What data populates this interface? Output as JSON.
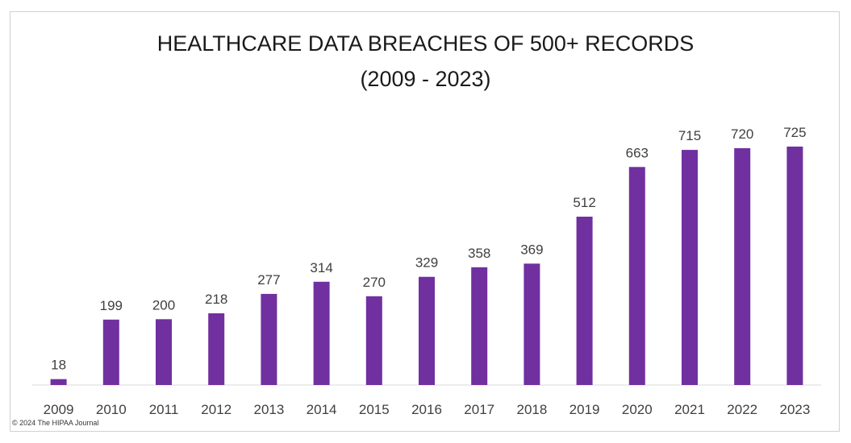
{
  "chart_data": {
    "type": "bar",
    "title_line1": "HEALTHCARE DATA BREACHES OF 500+ RECORDS",
    "title_line2": "(2009 - 2023)",
    "categories": [
      "2009",
      "2010",
      "2011",
      "2012",
      "2013",
      "2014",
      "2015",
      "2016",
      "2017",
      "2018",
      "2019",
      "2020",
      "2021",
      "2022",
      "2023"
    ],
    "values": [
      18,
      199,
      200,
      218,
      277,
      314,
      270,
      329,
      358,
      369,
      512,
      663,
      715,
      720,
      725
    ],
    "bar_color": "#7030a0",
    "ylim": [
      0,
      800
    ],
    "grid": false,
    "data_labels": true
  },
  "footer": {
    "copyright": "© 2024 The HIPAA Journal"
  }
}
